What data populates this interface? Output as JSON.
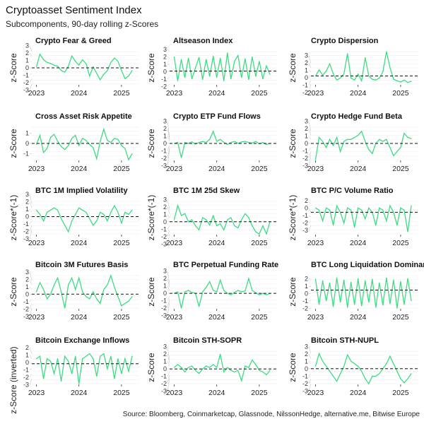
{
  "title": "Cryptoasset Sentiment Index",
  "subtitle": "Subcomponents, 90-day rolling z-Scores",
  "caption": "Source: Bloomberg, Coinmarketcap, Glassnode, NilssonHedge, alternative.me, Bitwise Europe",
  "chart_data": {
    "type": "line",
    "line_color": "#3ddc84",
    "reference_line_style": "dashed black",
    "grid": true,
    "x_tick_labels": [
      "2023",
      "2024",
      "2025"
    ],
    "x": [
      "2023-01",
      "2023-02",
      "2023-03",
      "2023-04",
      "2023-05",
      "2023-06",
      "2023-07",
      "2023-08",
      "2023-09",
      "2023-10",
      "2023-11",
      "2023-12",
      "2024-01",
      "2024-02",
      "2024-03",
      "2024-04",
      "2024-05",
      "2024-06",
      "2024-07",
      "2024-08",
      "2024-09",
      "2024-10",
      "2024-11",
      "2024-12",
      "2025-01",
      "2025-02",
      "2025-03",
      "2025-04"
    ],
    "panels": [
      {
        "title": "Crypto Fear & Greed",
        "ylabel": "z-Score",
        "ylim": [
          -3,
          3
        ],
        "yticks": [
          -3,
          -2,
          -1,
          0,
          1,
          2,
          3
        ],
        "ref": 0,
        "values": [
          0.2,
          2.5,
          1.5,
          1,
          0.8,
          0.5,
          0.3,
          -0.5,
          -0.8,
          0.3,
          2.2,
          1.2,
          0.5,
          1.5,
          0.8,
          -1.5,
          0.2,
          -1,
          -2.2,
          -1.2,
          -0.5,
          1,
          1.8,
          1.2,
          -0.5,
          -2,
          -1.5,
          -0.5
        ]
      },
      {
        "title": "Altseason Index",
        "ylabel": "z-Score",
        "ylim": [
          -2,
          3
        ],
        "yticks": [
          -2,
          -1,
          0,
          1,
          2,
          3
        ],
        "ref": 0,
        "values": [
          2.2,
          -1.5,
          1.8,
          -1,
          2,
          -1.2,
          0.5,
          2.1,
          -1.3,
          1.8,
          -0.8,
          2.3,
          -1,
          2,
          -1.5,
          2.8,
          -1.2,
          1.5,
          2.4,
          -1,
          1.9,
          -1.3,
          2.2,
          -0.8,
          1.5,
          -1.2,
          0.8,
          -0.5
        ]
      },
      {
        "title": "Crypto Dispersion",
        "ylabel": "z-Score",
        "ylim": [
          -2,
          6
        ],
        "yticks": [
          -2,
          -1,
          0,
          1,
          2,
          3
        ],
        "ref": 0,
        "values": [
          0,
          1.5,
          0.2,
          1.2,
          3,
          0.5,
          -1,
          -0.5,
          0.5,
          5.5,
          -0.5,
          -1,
          0.5,
          -1.2,
          4.5,
          0,
          -0.8,
          -1,
          -0.5,
          1,
          6,
          2,
          -0.8,
          -1.2,
          -1.5,
          -1,
          -1.6,
          -1.3
        ]
      },
      {
        "title": "Cross Asset Risk Appetite",
        "ylabel": "z-Score",
        "ylim": [
          -1.6,
          1.6
        ],
        "yticks": [
          -1,
          0,
          1
        ],
        "ref": 0,
        "values": [
          -0.1,
          0.8,
          -0.9,
          -0.5,
          0.6,
          0.9,
          0.2,
          -0.3,
          -0.6,
          -0.2,
          0.5,
          0.8,
          -0.2,
          0.5,
          0.3,
          -0.1,
          -0.4,
          -1.5,
          0.2,
          1.4,
          0.3,
          0.1,
          0.5,
          0.4,
          -0.2,
          -0.5,
          -1.6,
          -1
        ]
      },
      {
        "title": "Crypto ETP Fund Flows",
        "ylabel": "z-Score",
        "ylim": [
          -8,
          8
        ],
        "yticks": [
          -3,
          -2,
          -1,
          0,
          1,
          2,
          3
        ],
        "ref": 0,
        "values": [
          0,
          0.5,
          -7,
          0.5,
          0,
          0.8,
          -0.3,
          0.5,
          1,
          0.5,
          2,
          6,
          1,
          2,
          0.5,
          -0.5,
          0.5,
          1,
          0,
          0.8,
          1,
          0.5,
          0.2,
          1,
          -0.2,
          0.5,
          -0.5,
          0
        ]
      },
      {
        "title": "Crypto Hedge Fund Beta",
        "ylabel": "z-Score",
        "ylim": [
          -4,
          4
        ],
        "yticks": [
          -3,
          -2,
          -1,
          0,
          1,
          2,
          3
        ],
        "ref": 0,
        "values": [
          -4,
          1.5,
          0.5,
          -1,
          1,
          -0.5,
          1.5,
          -2,
          0.5,
          1,
          1,
          1.5,
          2,
          3,
          0.5,
          -1.5,
          -2.5,
          0,
          1,
          0.5,
          1,
          -1,
          -3,
          -2,
          -1,
          2.5,
          1.5,
          1.2
        ]
      },
      {
        "title": "BTC 1M Implied Volatility",
        "ylabel": "z-Score*(-1)",
        "ylim": [
          -4,
          3.5
        ],
        "yticks": [
          -3,
          -2,
          -1,
          0,
          1,
          2,
          3
        ],
        "ref": 0,
        "values": [
          1.5,
          0.5,
          -1,
          1,
          1.5,
          2,
          1.5,
          -0.5,
          -2,
          -3.5,
          -1,
          0.5,
          2,
          1.5,
          1,
          -0.5,
          -2,
          -1,
          1,
          0.5,
          -1,
          1,
          2.5,
          1,
          -1.5,
          1,
          0.5,
          1.5
        ]
      },
      {
        "title": "BTC 1M 25d Skew",
        "ylabel": "z-Score*(-1)",
        "ylim": [
          -3,
          5
        ],
        "yticks": [
          -3,
          -2,
          -1,
          0,
          1,
          2,
          3
        ],
        "ref": 0,
        "values": [
          0.5,
          4,
          1.5,
          2,
          0,
          0.5,
          -1,
          -2,
          1,
          0.5,
          -0.8,
          1.5,
          -1,
          -0.5,
          -2,
          0.5,
          1,
          -1,
          -1.5,
          0.5,
          2,
          1,
          -1,
          -2.5,
          -3,
          -1,
          -3,
          0
        ]
      },
      {
        "title": "BTC P/C Volume Ratio",
        "ylabel": "z-Score*(-1)",
        "ylim": [
          -5,
          2.5
        ],
        "yticks": [
          -3,
          -2,
          -1,
          0,
          2
        ],
        "ref": 0,
        "values": [
          1,
          0.5,
          -2,
          1,
          0.5,
          -3,
          1.5,
          0,
          -2.5,
          1,
          0.5,
          -3.5,
          1,
          0.5,
          -1.5,
          1,
          0,
          -3,
          1,
          0.5,
          -2,
          1.5,
          0,
          -3,
          1,
          0.5,
          -4.5,
          1.5
        ]
      },
      {
        "title": "Bitcoin 3M Futures Basis",
        "ylabel": "z-Score",
        "ylim": [
          -3,
          4
        ],
        "yticks": [
          -3,
          -2,
          -1,
          0,
          1,
          2,
          3
        ],
        "ref": 0,
        "values": [
          0.5,
          2.5,
          1,
          -1,
          0,
          2,
          3.5,
          0.5,
          -3,
          2,
          3.5,
          1,
          3.5,
          0.5,
          -0.5,
          -1,
          0.5,
          -1,
          -2,
          1,
          2,
          4,
          1.5,
          -0.5,
          -2.5,
          -2,
          -1.5,
          -0.5
        ]
      },
      {
        "title": "BTC Perpetual Funding Rate",
        "ylabel": "z-Score",
        "ylim": [
          -5,
          6
        ],
        "yticks": [
          -3,
          -2,
          -1,
          0,
          1,
          2,
          3
        ],
        "ref": 0,
        "values": [
          0,
          0.5,
          -5,
          0.5,
          1,
          0.3,
          0,
          -4.5,
          0.5,
          2,
          4,
          1,
          0.5,
          4.5,
          1,
          0,
          -0.5,
          0.3,
          1,
          0.5,
          0.8,
          5,
          1,
          0.2,
          -0.5,
          0,
          -0.5,
          0
        ]
      },
      {
        "title": "BTC Long Liquidation Dominance",
        "ylabel": "z-Score",
        "ylim": [
          -2,
          2.5
        ],
        "yticks": [
          -2,
          -1,
          0,
          1,
          2
        ],
        "ref": 0.5,
        "values": [
          2,
          -1.5,
          1.8,
          -1,
          1.5,
          -1.8,
          2.2,
          -1.2,
          1.9,
          -1.9,
          1.6,
          -1.5,
          2.1,
          -1.7,
          1.8,
          -1.2,
          2,
          -1.9,
          1.5,
          -1.6,
          2.2,
          -1.4,
          1.9,
          -2,
          1.7,
          -1.5,
          2.1,
          -1
        ]
      },
      {
        "title": "Bitcoin Exchange Inflows",
        "ylabel": "z-Score (inverted)",
        "ylim": [
          -4,
          2.5
        ],
        "yticks": [
          -3,
          -2,
          -1,
          0,
          1,
          2
        ],
        "ref": 0,
        "values": [
          1,
          1.5,
          -3,
          1,
          0.5,
          -2,
          1,
          -3.5,
          1.5,
          0.5,
          -2,
          1.5,
          -4,
          1,
          1.5,
          2,
          1,
          -2.5,
          1.5,
          2,
          -1,
          1.5,
          -3,
          1,
          -2,
          1,
          -1.5,
          1.5
        ]
      },
      {
        "title": "Bitcoin STH-SOPR",
        "ylabel": "z-Score",
        "ylim": [
          -5,
          6
        ],
        "yticks": [
          -3,
          -2,
          -1,
          0,
          1,
          2,
          3
        ],
        "ref": 0,
        "values": [
          0.5,
          1.5,
          0.5,
          -1,
          0.5,
          1,
          -0.5,
          -1.5,
          0,
          1,
          0.5,
          1.5,
          0.5,
          5,
          -1,
          0.5,
          -0.5,
          -1,
          -0.5,
          -4,
          1,
          0.5,
          3,
          1.5,
          -0.5,
          -1,
          -2,
          -0.5
        ]
      },
      {
        "title": "Bitcoin STH-NUPL",
        "ylabel": "z-Score",
        "ylim": [
          -3,
          3.5
        ],
        "yticks": [
          -3,
          -2,
          -1,
          0,
          1,
          2,
          3
        ],
        "ref": 0,
        "values": [
          0.5,
          3,
          1.5,
          0.5,
          -0.5,
          -1.5,
          -2.5,
          -1,
          0.5,
          2.8,
          1.5,
          1,
          0.5,
          -0.5,
          -2,
          -3,
          -1.5,
          -1.5,
          -1,
          0,
          1,
          2.5,
          1,
          -0.5,
          -2,
          -2.8,
          -2,
          -1
        ]
      }
    ]
  }
}
